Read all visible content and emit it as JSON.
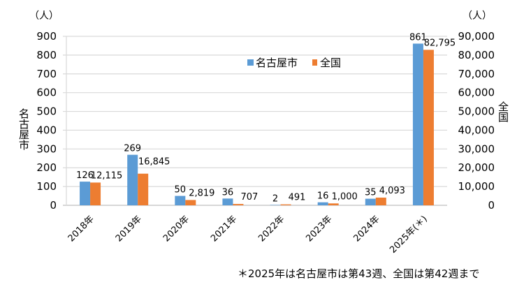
{
  "chart_data": {
    "type": "bar",
    "categories": [
      "2018年",
      "2019年",
      "2020年",
      "2021年",
      "2022年",
      "2023年",
      "2024年",
      "2025年(＊)"
    ],
    "series": [
      {
        "name": "名古屋市",
        "axis": "left",
        "color": "#5B9BD5",
        "values": [
          126,
          269,
          50,
          36,
          2,
          16,
          35,
          861
        ],
        "labels": [
          "126",
          "269",
          "50",
          "36",
          "2",
          "16",
          "35",
          "861"
        ]
      },
      {
        "name": "全国",
        "axis": "right",
        "color": "#ED7D31",
        "values": [
          12115,
          16845,
          2819,
          707,
          491,
          1000,
          4093,
          82795
        ],
        "labels": [
          "12,115",
          "16,845",
          "2,819",
          "707",
          "491",
          "1,000",
          "4,093",
          "82,795"
        ]
      }
    ],
    "y_left": {
      "label": "名古屋市",
      "unit": "（人）",
      "ylim": [
        0,
        900
      ],
      "ticks": [
        "0",
        "100",
        "200",
        "300",
        "400",
        "500",
        "600",
        "700",
        "800",
        "900"
      ]
    },
    "y_right": {
      "label": "全国",
      "unit": "（人）",
      "ylim": [
        0,
        90000
      ],
      "ticks": [
        "0",
        "10,000",
        "20,000",
        "30,000",
        "40,000",
        "50,000",
        "60,000",
        "70,000",
        "80,000",
        "90,000"
      ]
    },
    "grid": true,
    "legend": "top-center",
    "footnote": "＊2025年は名古屋市は第43週、全国は第42週まで"
  }
}
